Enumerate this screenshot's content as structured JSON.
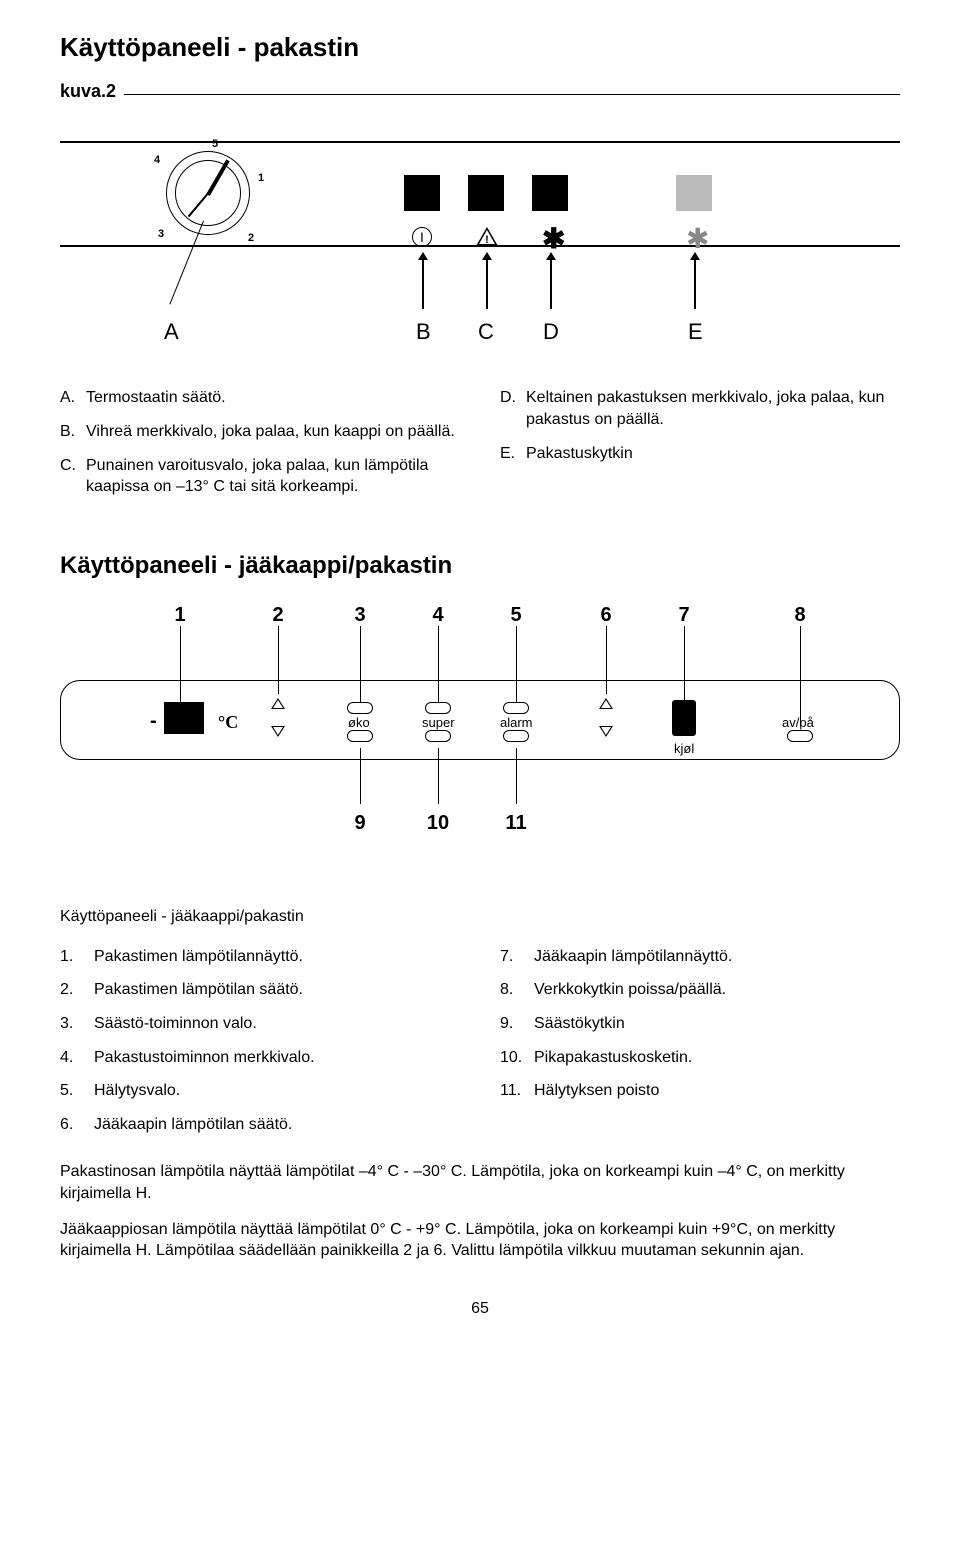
{
  "title1": "Käyttöpaneeli - pakastin",
  "fig1_caption": "kuva.2",
  "dial_numbers": {
    "n1": "1",
    "n2": "2",
    "n3": "3",
    "n4": "4",
    "n5": "5"
  },
  "fig1_letters": {
    "A": "A",
    "B": "B",
    "C": "C",
    "D": "D",
    "E": "E"
  },
  "fig1_legend_left": [
    {
      "lab": "A.",
      "txt": "Termostaatin säätö."
    },
    {
      "lab": "B.",
      "txt": "Vihreä merkkivalo, joka palaa, kun kaappi on päällä."
    },
    {
      "lab": "C.",
      "txt": "Punainen varoitusvalo, joka palaa, kun lämpötila kaapissa on –13° C tai sitä korkeampi."
    }
  ],
  "fig1_legend_right": [
    {
      "lab": "D.",
      "txt": "Keltainen pakastuksen merkkivalo, joka palaa, kun pakastus on päällä."
    },
    {
      "lab": "E.",
      "txt": "Pakastuskytkin"
    }
  ],
  "title2": "Käyttöpaneeli - jääkaappi/pakastin",
  "panel_numbers": [
    "1",
    "2",
    "3",
    "4",
    "5",
    "6",
    "7",
    "8",
    "9",
    "10",
    "11"
  ],
  "panel_words": {
    "degc": "°C",
    "oko": "øko",
    "super": "super",
    "alarm": "alarm",
    "kjol": "kjøl",
    "avpa": "av/på",
    "minus": "-"
  },
  "sub_caption": "Käyttöpaneeli - jääkaappi/pakastin",
  "list_left": [
    {
      "n": "1.",
      "t": "Pakastimen lämpötilannäyttö."
    },
    {
      "n": "2.",
      "t": "Pakastimen lämpötilan säätö."
    },
    {
      "n": "3.",
      "t": "Säästö-toiminnon valo."
    },
    {
      "n": "4.",
      "t": "Pakastustoiminnon merkkivalo."
    },
    {
      "n": "5.",
      "t": "Hälytysvalo."
    },
    {
      "n": "6.",
      "t": "Jääkaapin lämpötilan säätö."
    }
  ],
  "list_right": [
    {
      "n": "7.",
      "t": "Jääkaapin lämpötilannäyttö."
    },
    {
      "n": "8.",
      "t": "Verkkokytkin  poissa/päällä."
    },
    {
      "n": "9.",
      "t": "Säästökytkin"
    },
    {
      "n": "10.",
      "t": "Pikapakastuskosketin."
    },
    {
      "n": "11.",
      "t": "Hälytyksen poisto"
    }
  ],
  "para1": "Pakastinosan lämpötila näyttää lämpötilat –4° C - –30° C. Lämpötila, joka on korkeampi kuin –4° C, on merkitty kirjaimella H.",
  "para2": "Jääkaappiosan lämpötila näyttää lämpötilat 0° C - +9° C. Lämpötila, joka on korkeampi kuin +9°C, on merkitty kirjaimella H. Lämpötilaa säädellään painikkeilla 2 ja 6. Valittu lämpötila vilkkuu muutaman sekunnin ajan.",
  "page_number": "65",
  "colors": {
    "black": "#000000",
    "grey": "#bbbbbb",
    "white": "#ffffff"
  }
}
